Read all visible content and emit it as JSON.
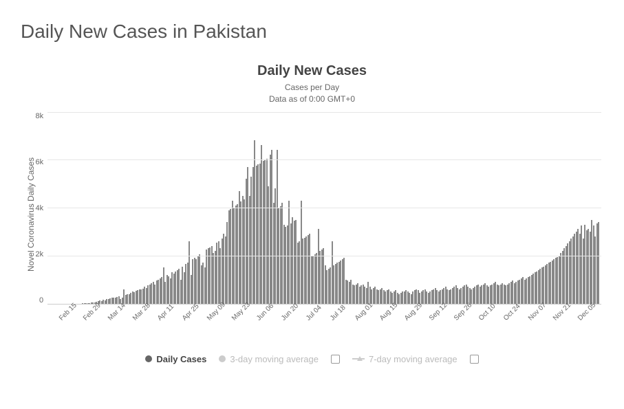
{
  "page_title": "Daily New Cases in Pakistan",
  "chart": {
    "type": "bar",
    "title": "Daily New Cases",
    "subtitle_line1": "Cases per Day",
    "subtitle_line2": "Data as of 0:00 GMT+0",
    "yaxis_label": "Novel Coronavirus Daily Cases",
    "ylim": [
      0,
      8000
    ],
    "ytick_step": 2000,
    "yticks": [
      "8k",
      "6k",
      "4k",
      "2k",
      "0"
    ],
    "xticks": [
      "Feb 15",
      "Feb 29",
      "Mar 14",
      "Mar 28",
      "Apr 11",
      "Apr 25",
      "May 09",
      "May 23",
      "Jun 06",
      "Jun 20",
      "Jul 04",
      "Jul 18",
      "Aug 01",
      "Aug 15",
      "Aug 29",
      "Sep 12",
      "Sep 26",
      "Oct 10",
      "Oct 24",
      "Nov 07",
      "Nov 21",
      "Dec 05"
    ],
    "bar_color": "#888888",
    "grid_color": "#e6e6e6",
    "axis_color": "#cccccc",
    "background_color": "#ffffff",
    "title_fontsize": 20,
    "label_fontsize": 12,
    "tick_fontsize": 11,
    "values": [
      0,
      0,
      0,
      0,
      0,
      0,
      0,
      0,
      0,
      0,
      0,
      0,
      0,
      0,
      0,
      0,
      0,
      0,
      0,
      0,
      5,
      10,
      15,
      20,
      30,
      40,
      50,
      60,
      80,
      100,
      120,
      110,
      150,
      140,
      180,
      200,
      220,
      250,
      240,
      260,
      280,
      300,
      200,
      250,
      600,
      350,
      400,
      380,
      450,
      500,
      480,
      520,
      550,
      600,
      580,
      620,
      700,
      650,
      750,
      800,
      850,
      900,
      800,
      950,
      1000,
      1050,
      1100,
      1500,
      900,
      1200,
      1150,
      1050,
      1300,
      1250,
      1350,
      1400,
      1450,
      1000,
      1550,
      1300,
      1650,
      1700,
      2600,
      1200,
      1850,
      1900,
      1850,
      2000,
      2050,
      1600,
      1700,
      1500,
      2250,
      2300,
      2350,
      2400,
      2100,
      2200,
      2550,
      2600,
      2300,
      2700,
      2900,
      2800,
      3400,
      3900,
      3950,
      4300,
      4000,
      4100,
      4150,
      4700,
      4250,
      4500,
      4350,
      5200,
      5700,
      4500,
      5300,
      5700,
      6800,
      5750,
      5800,
      5850,
      6600,
      5950,
      6000,
      6050,
      4900,
      6200,
      6400,
      4200,
      4800,
      6400,
      4000,
      4050,
      4200,
      3300,
      3200,
      3250,
      4300,
      3350,
      3600,
      3450,
      3500,
      2550,
      2600,
      4300,
      2700,
      2750,
      2800,
      2850,
      2900,
      2000,
      2000,
      2050,
      2100,
      3100,
      2200,
      2250,
      2300,
      1600,
      1400,
      1450,
      1500,
      2600,
      1600,
      1650,
      1700,
      1750,
      1800,
      1850,
      1900,
      1000,
      950,
      900,
      1000,
      800,
      750,
      800,
      850,
      700,
      750,
      800,
      700,
      650,
      900,
      700,
      600,
      650,
      700,
      600,
      550,
      600,
      650,
      550,
      500,
      550,
      600,
      500,
      450,
      500,
      550,
      450,
      400,
      450,
      500,
      500,
      550,
      500,
      450,
      400,
      500,
      550,
      600,
      550,
      450,
      500,
      550,
      600,
      500,
      450,
      500,
      550,
      600,
      650,
      550,
      500,
      550,
      600,
      650,
      700,
      600,
      550,
      600,
      650,
      700,
      750,
      650,
      600,
      650,
      700,
      750,
      800,
      700,
      650,
      600,
      650,
      700,
      750,
      800,
      700,
      750,
      800,
      850,
      750,
      700,
      750,
      800,
      850,
      900,
      800,
      750,
      800,
      850,
      800,
      750,
      800,
      850,
      900,
      950,
      850,
      900,
      950,
      1000,
      1050,
      1100,
      1000,
      1050,
      1100,
      1150,
      1200,
      1250,
      1300,
      1350,
      1400,
      1450,
      1500,
      1550,
      1600,
      1650,
      1700,
      1750,
      1800,
      1850,
      1900,
      1950,
      2000,
      2100,
      2200,
      2300,
      2400,
      2500,
      2600,
      2700,
      2800,
      2900,
      3000,
      3100,
      2900,
      3250,
      2700,
      3300,
      3050,
      3100,
      3000,
      3500,
      3250,
      2800,
      3350,
      3400
    ]
  },
  "legend": {
    "active": {
      "label": "Daily Cases",
      "color": "#666666"
    },
    "ma3": {
      "label": "3-day moving average",
      "color": "#cccccc"
    },
    "ma7": {
      "label": "7-day moving average",
      "color": "#cccccc"
    }
  }
}
